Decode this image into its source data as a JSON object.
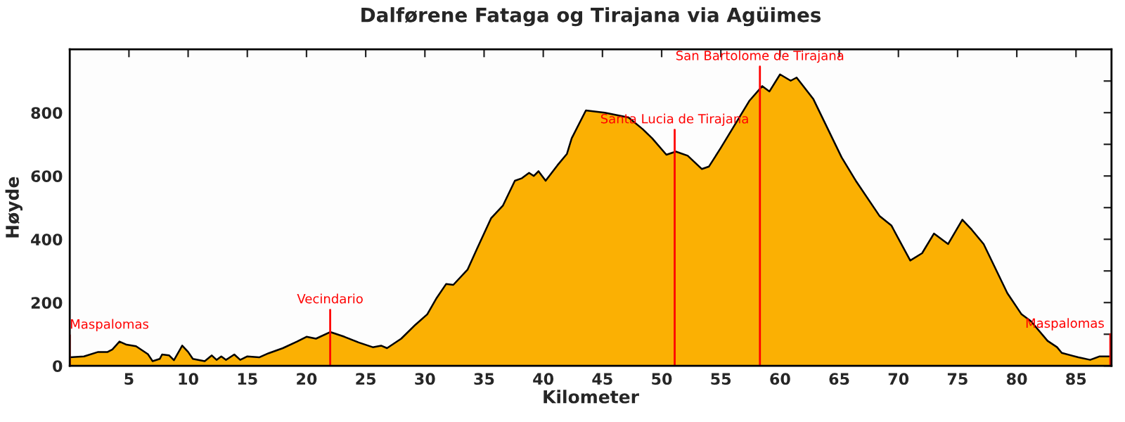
{
  "chart_data": {
    "type": "area",
    "title": "Dalførene Fataga og Tirajana via Agüimes",
    "xlabel": "Kilometer",
    "ylabel": "Høyde",
    "x": [
      0,
      1.2,
      2.4,
      3.2,
      3.6,
      4.2,
      4.8,
      5.6,
      6.6,
      7,
      7.6,
      7.8,
      8.4,
      8.8,
      9.5,
      10,
      10.4,
      11.4,
      12,
      12.4,
      12.8,
      13.2,
      13.9,
      14.4,
      15,
      16,
      16.8,
      18,
      19.2,
      20,
      20.8,
      22,
      23.2,
      24.4,
      25.6,
      26.3,
      26.8,
      28,
      29.2,
      30.2,
      31,
      31.8,
      32.4,
      33.6,
      34.4,
      35.6,
      36.6,
      37.6,
      38.2,
      38.8,
      39.2,
      39.6,
      40.2,
      41.2,
      42,
      42.4,
      43.6,
      45.2,
      47.2,
      48.4,
      49.2,
      50.4,
      51.2,
      52.2,
      53.4,
      54,
      55,
      56.2,
      57.4,
      58.5,
      59.1,
      60,
      60.9,
      61.4,
      62.8,
      65.2,
      66.4,
      68.4,
      69.4,
      71,
      72,
      73,
      74.2,
      75.4,
      76.2,
      77.2,
      79.2,
      80.4,
      81.2,
      82.6,
      83.4,
      83.8,
      85.2,
      86.2,
      87,
      88
    ],
    "series": [
      {
        "color": "#fbb003",
        "values": [
          27,
          30,
          44,
          44,
          52,
          77,
          67,
          62,
          37,
          15,
          22,
          36,
          33,
          18,
          64,
          44,
          22,
          15,
          33,
          19,
          30,
          19,
          36,
          19,
          30,
          27,
          40,
          56,
          77,
          92,
          86,
          107,
          92,
          74,
          59,
          64,
          56,
          86,
          130,
          163,
          215,
          259,
          256,
          304,
          370,
          467,
          507,
          585,
          593,
          610,
          600,
          615,
          585,
          634,
          670,
          719,
          807,
          800,
          785,
          748,
          719,
          667,
          677,
          664,
          622,
          630,
          689,
          763,
          837,
          884,
          867,
          921,
          901,
          911,
          844,
          659,
          585,
          474,
          444,
          333,
          356,
          418,
          385,
          462,
          430,
          385,
          230,
          163,
          141,
          79,
          59,
          41,
          27,
          19,
          30,
          30
        ]
      }
    ],
    "xlim": [
      0,
      88
    ],
    "ylim": [
      0,
      1000
    ],
    "xticks": [
      5,
      10,
      15,
      20,
      25,
      30,
      35,
      40,
      45,
      50,
      55,
      60,
      65,
      70,
      75,
      80,
      85
    ],
    "yticks": [
      0,
      {
        "value": 100,
        "label": null
      },
      200,
      {
        "value": 300,
        "label": null
      },
      400,
      {
        "value": 500,
        "label": null
      },
      600,
      {
        "value": 700,
        "label": null
      },
      800,
      {
        "value": 900,
        "label": null
      }
    ],
    "ref_lines": [
      {
        "axis": "x",
        "value": 0,
        "label": "Maspalomas",
        "color": "#ff0000"
      },
      {
        "axis": "x",
        "value": 22,
        "label": "Vecindario",
        "color": "#ff0000"
      },
      {
        "axis": "x",
        "value": 51.1,
        "label": "Santa Lucia de Tirajana",
        "color": "#ff0000"
      },
      {
        "axis": "x",
        "value": 58.3,
        "label": "San Bartolome de Tirajana",
        "color": "#ff0000"
      },
      {
        "axis": "x",
        "value": 87.9,
        "label": "Maspalomas",
        "color": "#ff0000"
      }
    ],
    "grid": false,
    "legend": false
  }
}
